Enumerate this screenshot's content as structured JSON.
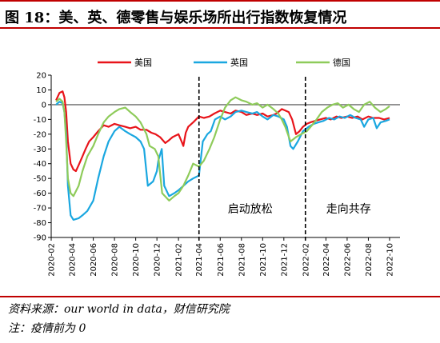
{
  "figure": {
    "title": "图 18：美、英、德零售与娱乐场所出行指数恢复情况",
    "source": "资料来源：our world in data，财信研究院",
    "note": "注：疫情前为 0"
  },
  "chart_data": {
    "type": "line",
    "ylim": [
      -90,
      20
    ],
    "yticks": [
      20,
      10,
      0,
      -10,
      -20,
      -30,
      -40,
      -50,
      -60,
      -70,
      -80,
      -90
    ],
    "xlim": [
      "2020-02-01",
      "2022-10-31"
    ],
    "xtick_labels": [
      "2020-02",
      "2020-04",
      "2020-06",
      "2020-08",
      "2020-10",
      "2020-12",
      "2021-02",
      "2021-04",
      "2021-06",
      "2021-08",
      "2021-10",
      "2021-12",
      "2022-02",
      "2022-04",
      "2022-06",
      "2022-08",
      "2022-10"
    ],
    "grid": false,
    "legend_position": "top",
    "colors": {
      "美国": "#e8141a",
      "英国": "#1aa7e0",
      "德国": "#8ecb5a"
    },
    "series": [
      {
        "name": "美国",
        "points": [
          [
            "2020-02-15",
            3
          ],
          [
            "2020-02-25",
            8
          ],
          [
            "2020-03-05",
            9
          ],
          [
            "2020-03-10",
            5
          ],
          [
            "2020-03-15",
            -5
          ],
          [
            "2020-03-20",
            -25
          ],
          [
            "2020-03-28",
            -40
          ],
          [
            "2020-04-05",
            -44
          ],
          [
            "2020-04-12",
            -45
          ],
          [
            "2020-04-20",
            -41
          ],
          [
            "2020-05-01",
            -35
          ],
          [
            "2020-05-10",
            -30
          ],
          [
            "2020-05-20",
            -25
          ],
          [
            "2020-06-01",
            -22
          ],
          [
            "2020-06-15",
            -18
          ],
          [
            "2020-07-01",
            -14
          ],
          [
            "2020-07-15",
            -15
          ],
          [
            "2020-08-01",
            -13
          ],
          [
            "2020-08-15",
            -14
          ],
          [
            "2020-09-01",
            -15
          ],
          [
            "2020-09-15",
            -16
          ],
          [
            "2020-10-01",
            -15
          ],
          [
            "2020-10-15",
            -17
          ],
          [
            "2020-11-01",
            -17
          ],
          [
            "2020-11-15",
            -19
          ],
          [
            "2020-11-27",
            -20
          ],
          [
            "2020-12-10",
            -22
          ],
          [
            "2020-12-25",
            -26
          ],
          [
            "2021-01-05",
            -24
          ],
          [
            "2021-01-15",
            -22
          ],
          [
            "2021-02-01",
            -20
          ],
          [
            "2021-02-10",
            -25
          ],
          [
            "2021-02-15",
            -28
          ],
          [
            "2021-02-22",
            -19
          ],
          [
            "2021-03-01",
            -15
          ],
          [
            "2021-03-15",
            -12
          ],
          [
            "2021-04-01",
            -8
          ],
          [
            "2021-04-15",
            -9
          ],
          [
            "2021-05-01",
            -8
          ],
          [
            "2021-05-15",
            -6
          ],
          [
            "2021-06-01",
            -4
          ],
          [
            "2021-06-15",
            -5
          ],
          [
            "2021-07-01",
            -6
          ],
          [
            "2021-07-15",
            -4
          ],
          [
            "2021-08-01",
            -5
          ],
          [
            "2021-08-15",
            -7
          ],
          [
            "2021-09-01",
            -6
          ],
          [
            "2021-09-15",
            -7
          ],
          [
            "2021-10-01",
            -6
          ],
          [
            "2021-10-15",
            -8
          ],
          [
            "2021-11-01",
            -7
          ],
          [
            "2021-11-10",
            -6
          ],
          [
            "2021-11-25",
            -3
          ],
          [
            "2021-12-05",
            -4
          ],
          [
            "2021-12-15",
            -5
          ],
          [
            "2021-12-25",
            -10
          ],
          [
            "2022-01-05",
            -20
          ],
          [
            "2022-01-15",
            -18
          ],
          [
            "2022-01-25",
            -15
          ],
          [
            "2022-02-05",
            -13
          ],
          [
            "2022-02-15",
            -12
          ],
          [
            "2022-03-01",
            -11
          ],
          [
            "2022-03-15",
            -10
          ],
          [
            "2022-04-01",
            -9
          ],
          [
            "2022-04-15",
            -10
          ],
          [
            "2022-05-01",
            -8
          ],
          [
            "2022-05-15",
            -9
          ],
          [
            "2022-06-01",
            -8
          ],
          [
            "2022-06-15",
            -9
          ],
          [
            "2022-07-01",
            -8
          ],
          [
            "2022-07-15",
            -10
          ],
          [
            "2022-08-01",
            -8
          ],
          [
            "2022-08-15",
            -9
          ],
          [
            "2022-09-01",
            -9
          ],
          [
            "2022-09-15",
            -10
          ],
          [
            "2022-10-01",
            -9
          ]
        ]
      },
      {
        "name": "英国",
        "points": [
          [
            "2020-02-15",
            0
          ],
          [
            "2020-02-25",
            2
          ],
          [
            "2020-03-05",
            1
          ],
          [
            "2020-03-10",
            -5
          ],
          [
            "2020-03-15",
            -20
          ],
          [
            "2020-03-20",
            -55
          ],
          [
            "2020-03-28",
            -75
          ],
          [
            "2020-04-05",
            -78
          ],
          [
            "2020-04-20",
            -77
          ],
          [
            "2020-05-01",
            -75
          ],
          [
            "2020-05-15",
            -72
          ],
          [
            "2020-06-01",
            -65
          ],
          [
            "2020-06-15",
            -50
          ],
          [
            "2020-07-01",
            -35
          ],
          [
            "2020-07-15",
            -25
          ],
          [
            "2020-08-01",
            -18
          ],
          [
            "2020-08-15",
            -15
          ],
          [
            "2020-09-01",
            -18
          ],
          [
            "2020-09-15",
            -20
          ],
          [
            "2020-10-01",
            -22
          ],
          [
            "2020-10-15",
            -25
          ],
          [
            "2020-10-25",
            -30
          ],
          [
            "2020-11-05",
            -55
          ],
          [
            "2020-11-20",
            -52
          ],
          [
            "2020-12-01",
            -45
          ],
          [
            "2020-12-05",
            -38
          ],
          [
            "2020-12-15",
            -30
          ],
          [
            "2020-12-22",
            -55
          ],
          [
            "2021-01-05",
            -62
          ],
          [
            "2021-01-20",
            -60
          ],
          [
            "2021-02-01",
            -58
          ],
          [
            "2021-02-15",
            -55
          ],
          [
            "2021-03-01",
            -52
          ],
          [
            "2021-03-15",
            -50
          ],
          [
            "2021-04-01",
            -48
          ],
          [
            "2021-04-12",
            -25
          ],
          [
            "2021-04-25",
            -20
          ],
          [
            "2021-05-05",
            -18
          ],
          [
            "2021-05-17",
            -10
          ],
          [
            "2021-06-01",
            -8
          ],
          [
            "2021-06-15",
            -10
          ],
          [
            "2021-07-01",
            -8
          ],
          [
            "2021-07-15",
            -5
          ],
          [
            "2021-08-01",
            -4
          ],
          [
            "2021-08-15",
            -5
          ],
          [
            "2021-09-01",
            -6
          ],
          [
            "2021-09-15",
            -5
          ],
          [
            "2021-10-01",
            -8
          ],
          [
            "2021-10-15",
            -10
          ],
          [
            "2021-11-01",
            -7
          ],
          [
            "2021-11-15",
            -8
          ],
          [
            "2021-12-01",
            -10
          ],
          [
            "2021-12-10",
            -15
          ],
          [
            "2021-12-20",
            -28
          ],
          [
            "2021-12-28",
            -30
          ],
          [
            "2022-01-10",
            -25
          ],
          [
            "2022-01-25",
            -18
          ],
          [
            "2022-02-10",
            -15
          ],
          [
            "2022-02-25",
            -13
          ],
          [
            "2022-03-10",
            -12
          ],
          [
            "2022-03-25",
            -11
          ],
          [
            "2022-04-10",
            -9
          ],
          [
            "2022-04-25",
            -10
          ],
          [
            "2022-05-10",
            -8
          ],
          [
            "2022-05-25",
            -9
          ],
          [
            "2022-06-10",
            -7
          ],
          [
            "2022-06-25",
            -9
          ],
          [
            "2022-07-10",
            -10
          ],
          [
            "2022-07-20",
            -15
          ],
          [
            "2022-08-01",
            -10
          ],
          [
            "2022-08-15",
            -9
          ],
          [
            "2022-08-25",
            -16
          ],
          [
            "2022-09-05",
            -12
          ],
          [
            "2022-09-20",
            -11
          ],
          [
            "2022-10-01",
            -10
          ]
        ]
      },
      {
        "name": "德国",
        "points": [
          [
            "2020-02-15",
            2
          ],
          [
            "2020-02-25",
            4
          ],
          [
            "2020-03-05",
            2
          ],
          [
            "2020-03-10",
            -5
          ],
          [
            "2020-03-15",
            -25
          ],
          [
            "2020-03-20",
            -50
          ],
          [
            "2020-03-28",
            -60
          ],
          [
            "2020-04-05",
            -62
          ],
          [
            "2020-04-20",
            -55
          ],
          [
            "2020-05-01",
            -45
          ],
          [
            "2020-05-15",
            -35
          ],
          [
            "2020-06-01",
            -28
          ],
          [
            "2020-06-15",
            -20
          ],
          [
            "2020-07-01",
            -12
          ],
          [
            "2020-07-15",
            -8
          ],
          [
            "2020-08-01",
            -5
          ],
          [
            "2020-08-15",
            -3
          ],
          [
            "2020-09-01",
            -2
          ],
          [
            "2020-09-15",
            -5
          ],
          [
            "2020-10-01",
            -8
          ],
          [
            "2020-10-15",
            -12
          ],
          [
            "2020-11-01",
            -20
          ],
          [
            "2020-11-10",
            -28
          ],
          [
            "2020-11-25",
            -30
          ],
          [
            "2020-12-05",
            -35
          ],
          [
            "2020-12-16",
            -60
          ],
          [
            "2021-01-05",
            -65
          ],
          [
            "2021-01-20",
            -62
          ],
          [
            "2021-02-01",
            -60
          ],
          [
            "2021-02-15",
            -55
          ],
          [
            "2021-03-01",
            -48
          ],
          [
            "2021-03-15",
            -40
          ],
          [
            "2021-04-01",
            -42
          ],
          [
            "2021-04-15",
            -38
          ],
          [
            "2021-05-01",
            -30
          ],
          [
            "2021-05-15",
            -22
          ],
          [
            "2021-06-01",
            -10
          ],
          [
            "2021-06-15",
            -2
          ],
          [
            "2021-07-01",
            3
          ],
          [
            "2021-07-15",
            5
          ],
          [
            "2021-08-01",
            3
          ],
          [
            "2021-08-15",
            2
          ],
          [
            "2021-09-01",
            0
          ],
          [
            "2021-09-15",
            1
          ],
          [
            "2021-10-01",
            -2
          ],
          [
            "2021-10-15",
            0
          ],
          [
            "2021-11-01",
            -3
          ],
          [
            "2021-11-15",
            -6
          ],
          [
            "2021-11-25",
            -10
          ],
          [
            "2021-12-05",
            -15
          ],
          [
            "2021-12-20",
            -25
          ],
          [
            "2022-01-05",
            -22
          ],
          [
            "2022-01-20",
            -20
          ],
          [
            "2022-02-05",
            -18
          ],
          [
            "2022-02-20",
            -14
          ],
          [
            "2022-03-05",
            -10
          ],
          [
            "2022-03-20",
            -5
          ],
          [
            "2022-04-05",
            -2
          ],
          [
            "2022-04-20",
            0
          ],
          [
            "2022-05-05",
            1
          ],
          [
            "2022-05-20",
            -2
          ],
          [
            "2022-06-05",
            0
          ],
          [
            "2022-06-20",
            -3
          ],
          [
            "2022-07-05",
            -5
          ],
          [
            "2022-07-20",
            0
          ],
          [
            "2022-08-05",
            2
          ],
          [
            "2022-08-20",
            -2
          ],
          [
            "2022-09-05",
            -5
          ],
          [
            "2022-09-20",
            -3
          ],
          [
            "2022-10-01",
            -1
          ]
        ]
      }
    ],
    "phase_markers": [
      {
        "date": "2021-04-01",
        "label": "启动放松"
      },
      {
        "date": "2022-02-01",
        "label": "走向共存"
      }
    ]
  }
}
